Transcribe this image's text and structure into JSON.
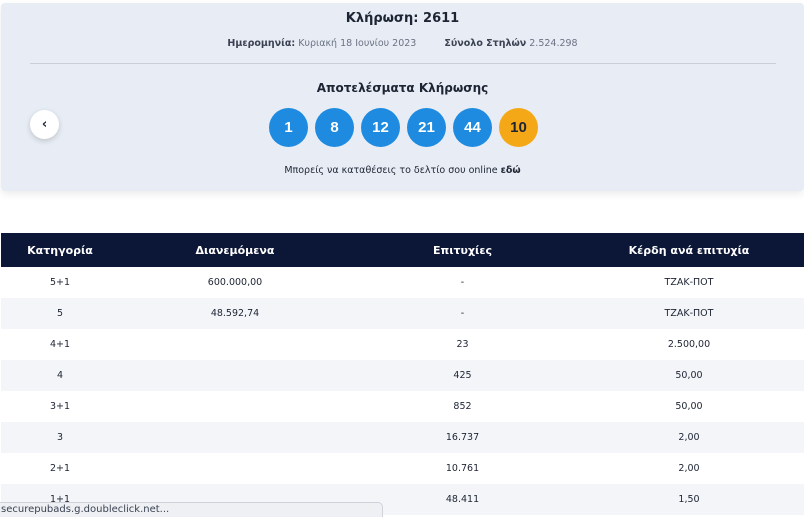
{
  "draw": {
    "title": "Κλήρωση: 2611",
    "date_label": "Ημερομηνία:",
    "date_value": "Κυριακή 18 Ιουνίου 2023",
    "columns_label": "Σύνολο Στηλών",
    "columns_value": "2.524.298"
  },
  "results": {
    "title": "Αποτελέσματα Κλήρωσης",
    "numbers": [
      "1",
      "8",
      "12",
      "21",
      "44"
    ],
    "joker": "10",
    "online_text": "Μπορείς να καταθέσεις το δελτίο σου online",
    "online_link": "εδώ",
    "prev_icon": "chevron-left-icon",
    "colors": {
      "ball": "#1e8be0",
      "joker": "#f5a817",
      "header": "#0c1637"
    }
  },
  "table": {
    "headers": [
      "Κατηγορία",
      "Διανεμόμενα",
      "Επιτυχίες",
      "Κέρδη ανά επιτυχία"
    ],
    "rows": [
      [
        "5+1",
        "600.000,00",
        "-",
        "ΤΖΑΚ-ΠΟΤ"
      ],
      [
        "5",
        "48.592,74",
        "-",
        "ΤΖΑΚ-ΠΟΤ"
      ],
      [
        "4+1",
        "",
        "23",
        "2.500,00"
      ],
      [
        "4",
        "",
        "425",
        "50,00"
      ],
      [
        "3+1",
        "",
        "852",
        "50,00"
      ],
      [
        "3",
        "",
        "16.737",
        "2,00"
      ],
      [
        "2+1",
        "",
        "10.761",
        "2,00"
      ],
      [
        "1+1",
        "",
        "48.411",
        "1,50"
      ]
    ]
  },
  "statusbar": {
    "text": "securepubads.g.doubleclick.net..."
  }
}
